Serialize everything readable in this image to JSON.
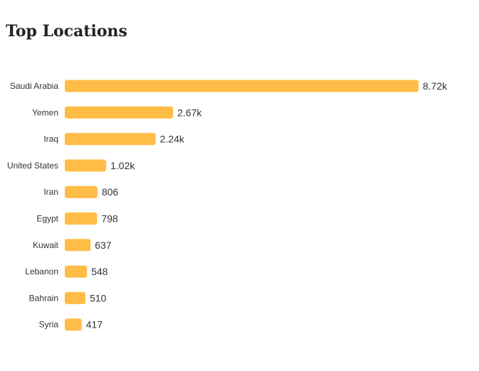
{
  "title": "Top Locations",
  "chart_data": {
    "type": "bar",
    "orientation": "horizontal",
    "title": "Top Locations",
    "categories": [
      "Saudi Arabia",
      "Yemen",
      "Iraq",
      "United States",
      "Iran",
      "Egypt",
      "Kuwait",
      "Lebanon",
      "Bahrain",
      "Syria"
    ],
    "values": [
      8720,
      2670,
      2240,
      1020,
      806,
      798,
      637,
      548,
      510,
      417
    ],
    "value_labels": [
      "8.72k",
      "2.67k",
      "2.24k",
      "1.02k",
      "806",
      "798",
      "637",
      "548",
      "510",
      "417"
    ],
    "xlabel": "",
    "ylabel": "",
    "xlim": [
      0,
      8720
    ],
    "grid": false,
    "legend": "none",
    "bar_color": "#FFBC47"
  }
}
